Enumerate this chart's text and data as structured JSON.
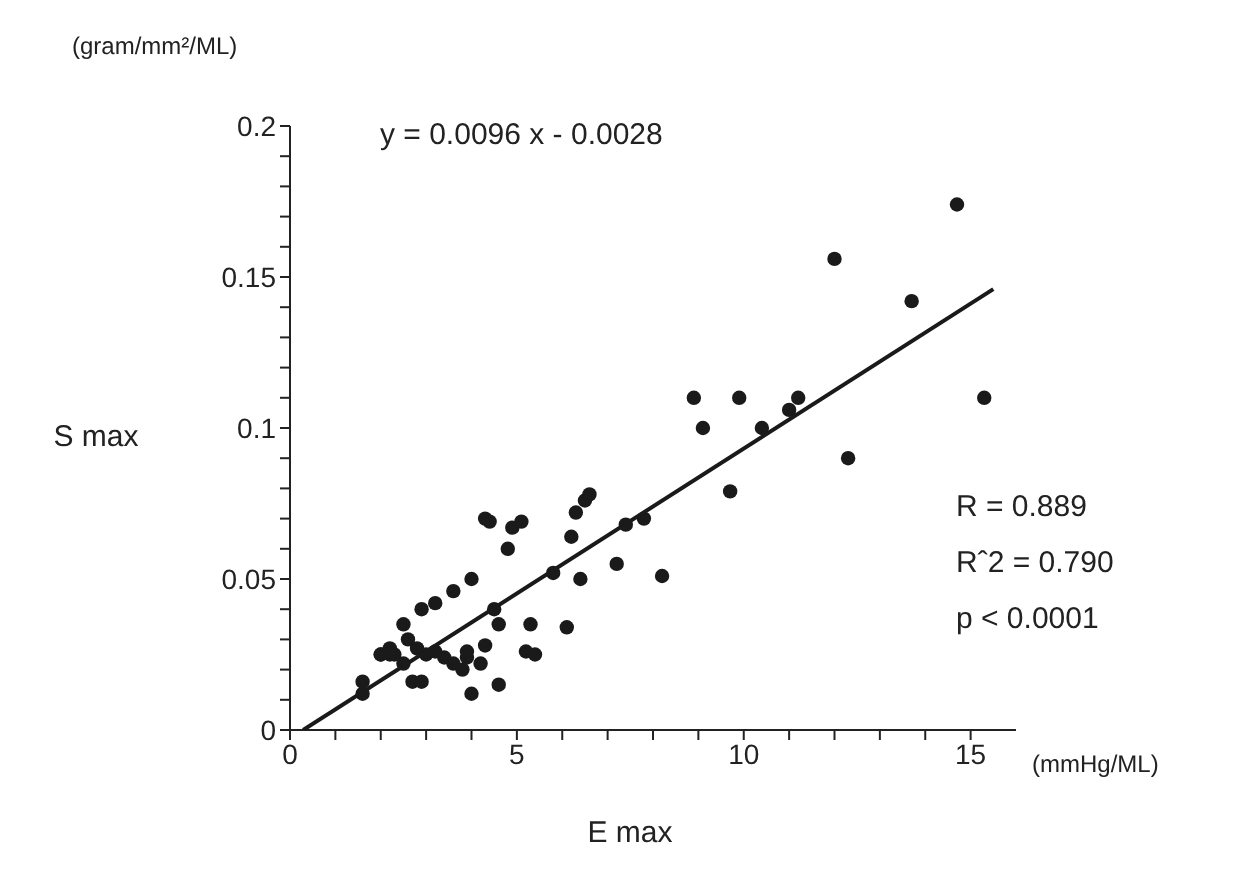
{
  "chart_data": {
    "type": "scatter",
    "xlabel": "E max",
    "ylabel": "S max",
    "annotations": [
      "(gram/mm²/ML)",
      "(mmHg/ML)",
      "y = 0.0096 x - 0.0028",
      "R = 0.889",
      "Rˆ2 = 0.790",
      "p < 0.0001"
    ],
    "xlim": [
      0,
      16
    ],
    "ylim": [
      0,
      0.2
    ],
    "xticks": [
      0,
      {
        "value": 1,
        "label": null
      },
      {
        "value": 2,
        "label": null
      },
      {
        "value": 3,
        "label": null
      },
      {
        "value": 4,
        "label": null
      },
      5,
      {
        "value": 6,
        "label": null
      },
      {
        "value": 7,
        "label": null
      },
      {
        "value": 8,
        "label": null
      },
      {
        "value": 9,
        "label": null
      },
      10,
      {
        "value": 11,
        "label": null
      },
      {
        "value": 12,
        "label": null
      },
      {
        "value": 13,
        "label": null
      },
      {
        "value": 14,
        "label": null
      },
      15
    ],
    "yticks": [
      0,
      {
        "value": 0.01,
        "label": null
      },
      {
        "value": 0.02,
        "label": null
      },
      {
        "value": 0.03,
        "label": null
      },
      {
        "value": 0.04,
        "label": null
      },
      0.05,
      {
        "value": 0.06,
        "label": null
      },
      {
        "value": 0.07,
        "label": null
      },
      {
        "value": 0.08,
        "label": null
      },
      {
        "value": 0.09,
        "label": null
      },
      0.1,
      {
        "value": 0.11,
        "label": null
      },
      {
        "value": 0.12,
        "label": null
      },
      {
        "value": 0.13,
        "label": null
      },
      {
        "value": 0.14,
        "label": null
      },
      0.15,
      {
        "value": 0.16,
        "label": null
      },
      {
        "value": 0.17,
        "label": null
      },
      {
        "value": 0.18,
        "label": null
      },
      {
        "value": 0.19,
        "label": null
      },
      0.2
    ],
    "grid": false,
    "marker": "circle",
    "series": [
      {
        "color": "#1a1a1a",
        "x": [
          1.6,
          1.6,
          2.0,
          2.2,
          2.3,
          2.5,
          2.6,
          2.7,
          2.8,
          2.9,
          2.9,
          3.0,
          3.2,
          3.4,
          3.6,
          3.6,
          3.8,
          3.9,
          3.9,
          4.0,
          4.0,
          4.2,
          4.3,
          4.3,
          4.4,
          4.5,
          4.6,
          4.6,
          4.8,
          4.9,
          5.1,
          5.2,
          5.4,
          5.3,
          5.8,
          6.1,
          6.2,
          6.3,
          6.4,
          6.5,
          6.6,
          7.2,
          7.4,
          7.8,
          8.2,
          8.9,
          9.1,
          9.7,
          9.9,
          10.4,
          11.0,
          11.2,
          12.0,
          12.3,
          13.7,
          14.7,
          15.3,
          2.2,
          2.5,
          3.2,
          2.0
        ],
        "values": [
          0.012,
          0.016,
          0.025,
          0.027,
          0.025,
          0.035,
          0.03,
          0.016,
          0.027,
          0.04,
          0.016,
          0.025,
          0.042,
          0.024,
          0.046,
          0.022,
          0.02,
          0.024,
          0.026,
          0.05,
          0.012,
          0.022,
          0.028,
          0.07,
          0.069,
          0.04,
          0.035,
          0.015,
          0.06,
          0.067,
          0.069,
          0.026,
          0.025,
          0.035,
          0.052,
          0.034,
          0.064,
          0.072,
          0.05,
          0.076,
          0.078,
          0.055,
          0.068,
          0.07,
          0.051,
          0.11,
          0.1,
          0.079,
          0.11,
          0.1,
          0.106,
          0.11,
          0.156,
          0.09,
          0.142,
          0.174,
          0.11,
          0.025,
          0.022,
          0.026,
          0.025
        ]
      },
      {
        "type": "line",
        "color": "#1a1a1a",
        "marker": "none",
        "line_style": "solid",
        "x": [
          0.29,
          15.5
        ],
        "values": [
          0,
          0.146
        ]
      }
    ]
  }
}
